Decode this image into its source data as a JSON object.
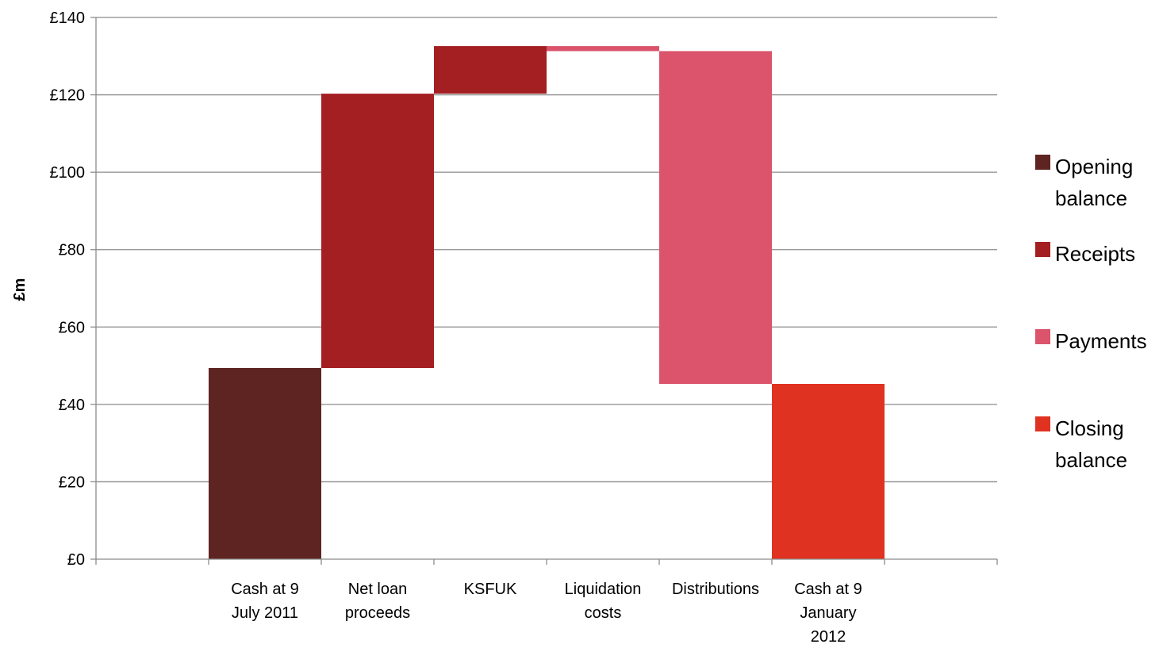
{
  "chart_data": {
    "type": "bar",
    "subtype": "waterfall",
    "ylabel": "£m",
    "ylim": [
      0,
      140
    ],
    "yticks": [
      0,
      20,
      40,
      60,
      80,
      100,
      120,
      140
    ],
    "ytick_labels": [
      "£0",
      "£20",
      "£40",
      "£60",
      "£80",
      "£100",
      "£120",
      "£140"
    ],
    "grid": true,
    "legend_position": "right",
    "categories": [
      [
        "Cash at 9",
        "July 2011"
      ],
      [
        "Net loan",
        "proceeds"
      ],
      [
        "KSFUK"
      ],
      [
        "Liquidation",
        "costs"
      ],
      [
        "Distributions"
      ],
      [
        "Cash at 9",
        "January",
        "2012"
      ]
    ],
    "bars": [
      {
        "series": "Opening balance",
        "start": 0,
        "end": 49.4
      },
      {
        "series": "Receipts",
        "start": 49.4,
        "end": 120.3
      },
      {
        "series": "Receipts",
        "start": 120.3,
        "end": 132.6
      },
      {
        "series": "Payments",
        "start": 132.6,
        "end": 131.3
      },
      {
        "series": "Payments",
        "start": 131.3,
        "end": 45.3
      },
      {
        "series": "Closing balance",
        "start": 0,
        "end": 45.3
      }
    ],
    "series": [
      {
        "name": "Opening balance",
        "legend_lines": [
          "Opening",
          "balance"
        ],
        "color": "#5e2421"
      },
      {
        "name": "Receipts",
        "legend_lines": [
          "Receipts"
        ],
        "color": "#a31f22"
      },
      {
        "name": "Payments",
        "legend_lines": [
          "Payments"
        ],
        "color": "#db546b"
      },
      {
        "name": "Closing balance",
        "legend_lines": [
          "Closing",
          "balance"
        ],
        "color": "#e03220"
      }
    ]
  }
}
